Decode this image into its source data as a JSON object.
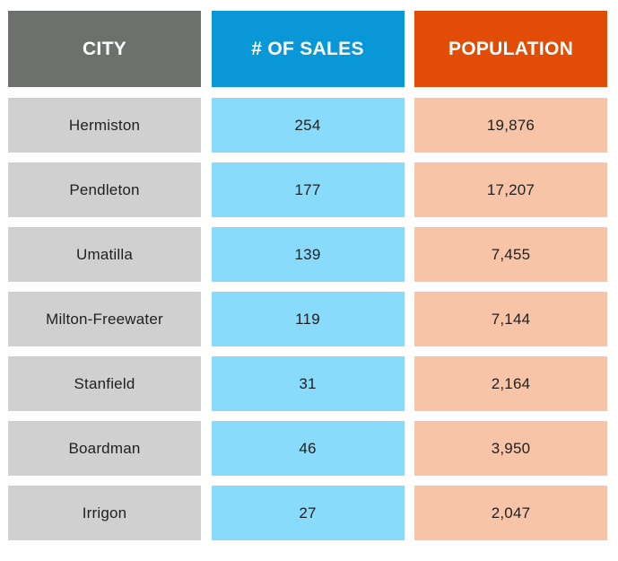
{
  "chart_data": {
    "type": "table",
    "columns": [
      "CITY",
      "# OF SALES",
      "POPULATION"
    ],
    "rows": [
      {
        "city": "Hermiston",
        "sales": "254",
        "population": "19,876"
      },
      {
        "city": "Pendleton",
        "sales": "177",
        "population": "17,207"
      },
      {
        "city": "Umatilla",
        "sales": "139",
        "population": "7,455"
      },
      {
        "city": "Milton-Freewater",
        "sales": "119",
        "population": "7,144"
      },
      {
        "city": "Stanfield",
        "sales": "31",
        "population": "2,164"
      },
      {
        "city": "Boardman",
        "sales": "46",
        "population": "3,950"
      },
      {
        "city": "Irrigon",
        "sales": "27",
        "population": "2,047"
      }
    ]
  },
  "colors": {
    "city_header": "#6d716d",
    "city_cell": "#d0d0d0",
    "sales_header": "#0997d8",
    "sales_cell": "#88dbfb",
    "population_header": "#e14d07",
    "population_cell": "#f8c4a8"
  }
}
